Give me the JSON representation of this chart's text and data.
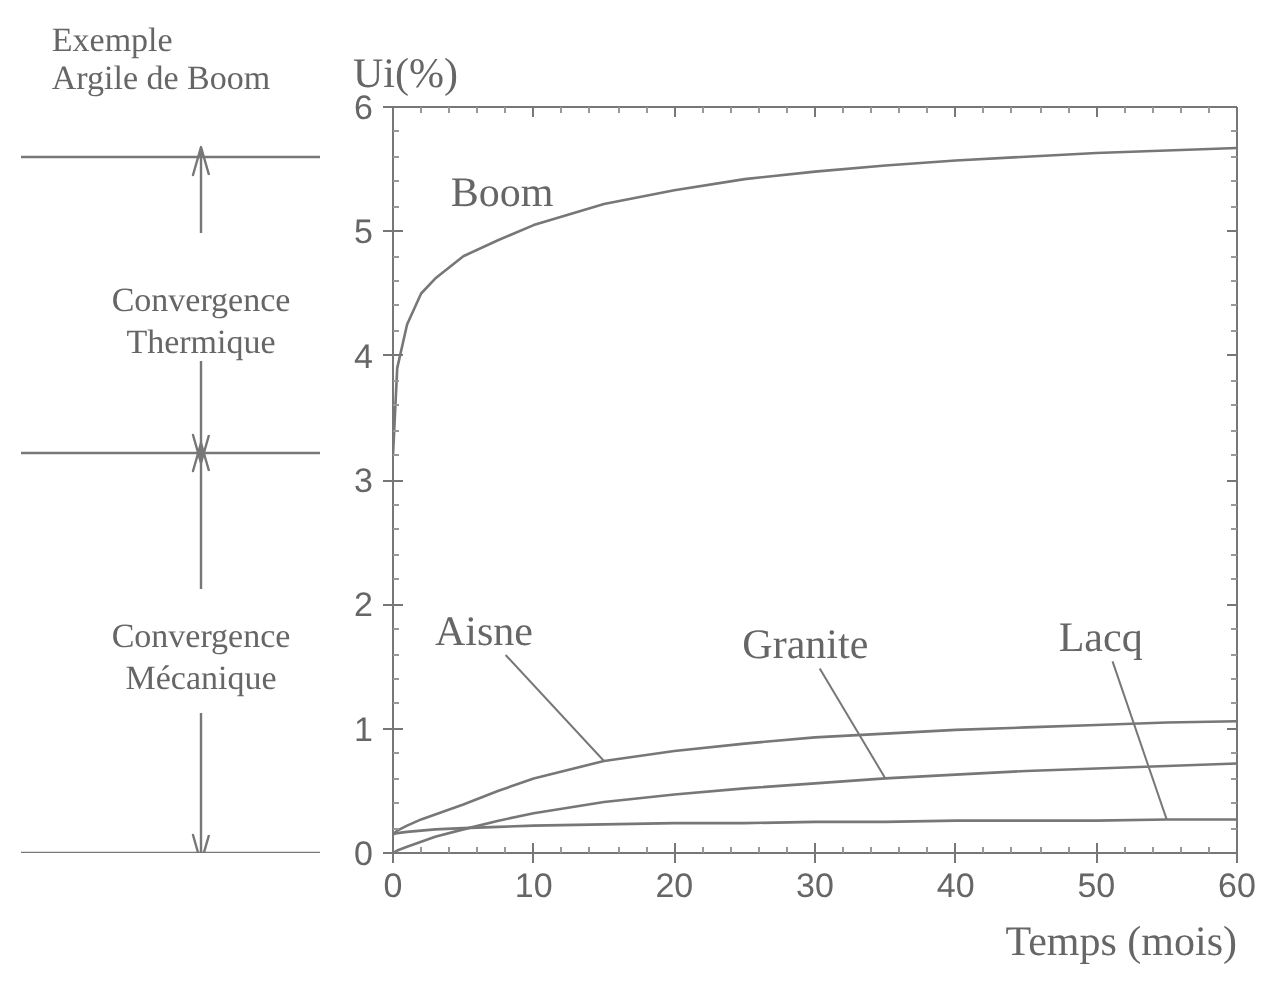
{
  "chart_data": [
    {
      "type": "line",
      "xlabel": "Temps (mois)",
      "ylabel": "Ui(%)",
      "x": [
        0,
        0.3,
        1,
        2,
        3,
        5,
        7.5,
        10,
        15,
        20,
        25,
        30,
        35,
        40,
        45,
        50,
        55,
        60
      ],
      "series": [
        {
          "name": "Boom",
          "color": "#777777",
          "values": [
            3.2,
            3.9,
            4.25,
            4.5,
            4.62,
            4.8,
            4.93,
            5.05,
            5.22,
            5.33,
            5.42,
            5.48,
            5.53,
            5.57,
            5.6,
            5.63,
            5.65,
            5.67
          ]
        },
        {
          "name": "Aisne",
          "color": "#777777",
          "values": [
            0.15,
            0.18,
            0.22,
            0.27,
            0.31,
            0.39,
            0.5,
            0.6,
            0.74,
            0.82,
            0.88,
            0.93,
            0.96,
            0.99,
            1.01,
            1.03,
            1.05,
            1.06
          ]
        },
        {
          "name": "Granite",
          "color": "#777777",
          "values": [
            0,
            0.02,
            0.05,
            0.09,
            0.13,
            0.19,
            0.26,
            0.32,
            0.41,
            0.47,
            0.52,
            0.56,
            0.6,
            0.63,
            0.66,
            0.68,
            0.7,
            0.72
          ]
        },
        {
          "name": "Lacq",
          "color": "#777777",
          "values": [
            0.15,
            0.16,
            0.17,
            0.18,
            0.19,
            0.2,
            0.21,
            0.22,
            0.23,
            0.24,
            0.24,
            0.25,
            0.25,
            0.26,
            0.26,
            0.26,
            0.27,
            0.27
          ]
        }
      ],
      "xlim": [
        0,
        60
      ],
      "xticks": [
        0,
        10,
        20,
        30,
        40,
        50,
        60
      ],
      "ylim": [
        0,
        6
      ],
      "yticks": [
        0,
        1,
        2,
        3,
        4,
        5,
        6
      ],
      "grid": false,
      "marker": "none",
      "line_style": "solid"
    },
    {
      "type": "other",
      "annotations": [
        "Exemple\nArgile de Boom",
        "Convergence\nThermique",
        "Convergence\nMécanique"
      ]
    }
  ]
}
